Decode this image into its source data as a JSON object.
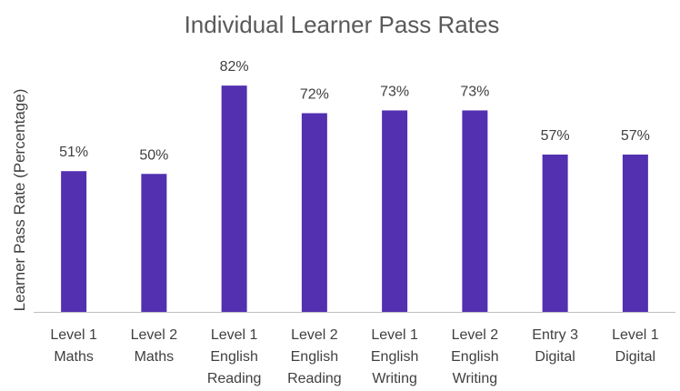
{
  "chart_data": {
    "type": "bar",
    "title": "Individual Learner Pass Rates",
    "ylabel": "Learner Pass Rate (Percentage)",
    "xlabel": "",
    "ylim": [
      0,
      100
    ],
    "grid": false,
    "categories": [
      [
        "Level 1",
        "Maths"
      ],
      [
        "Level 2",
        "Maths"
      ],
      [
        "Level 1",
        "English",
        "Reading"
      ],
      [
        "Level 2",
        "English",
        "Reading"
      ],
      [
        "Level 1",
        "English",
        "Writing"
      ],
      [
        "Level 2",
        "English",
        "Writing"
      ],
      [
        "Entry 3",
        "Digital"
      ],
      [
        "Level 1",
        "Digital"
      ]
    ],
    "values": [
      51,
      50,
      82,
      72,
      73,
      73,
      57,
      57
    ],
    "data_labels": [
      "51%",
      "50%",
      "82%",
      "72%",
      "73%",
      "73%",
      "57%",
      "57%"
    ],
    "colors": {
      "bar": "#5230B0",
      "axis": "#BFBFBF"
    }
  }
}
